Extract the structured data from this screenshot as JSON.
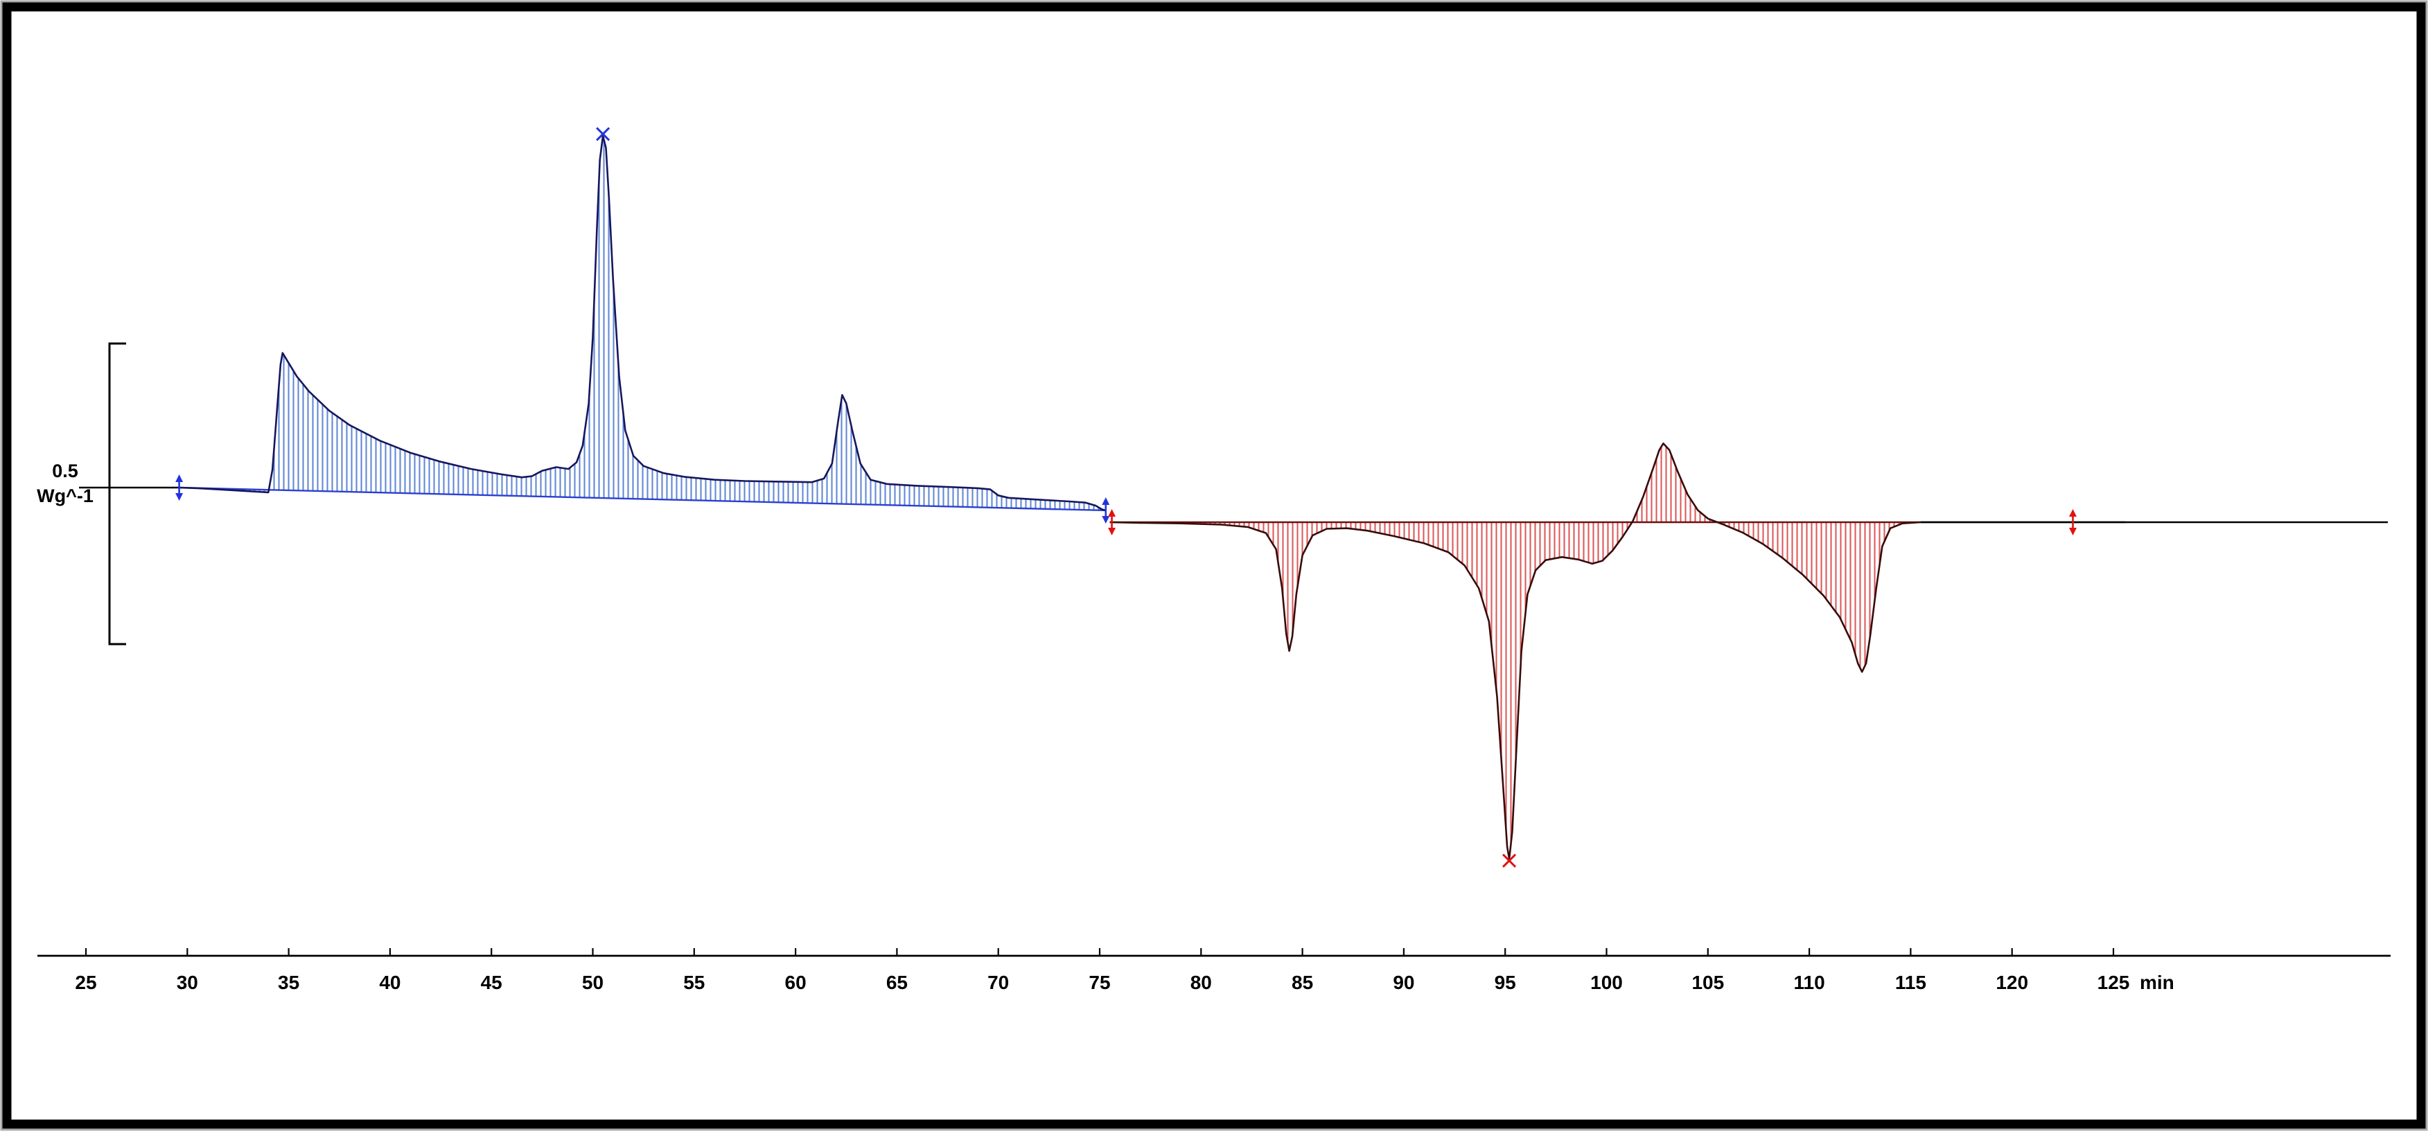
{
  "chart_data": {
    "type": "line",
    "title": "",
    "xlabel": "min",
    "ylabel": "Wg^-1",
    "x_unit": "min",
    "x_ticks": [
      25,
      30,
      35,
      40,
      45,
      50,
      55,
      60,
      65,
      70,
      75,
      80,
      85,
      90,
      95,
      100,
      105,
      110,
      115,
      120,
      125
    ],
    "x_range": [
      25,
      128
    ],
    "grid": "off",
    "scale_bar": {
      "value": "0.5",
      "unit": "Wg^-1",
      "span_Wg": 0.5
    },
    "colors": {
      "blue_curve": "#16165e",
      "blue_hatch": "#6288d4",
      "blue_accent": "#2233dd",
      "red_curve": "#380b0b",
      "red_hatch": "#dd5a5a",
      "red_accent": "#e01212",
      "axis": "#000000"
    },
    "series": [
      {
        "name": "segment-1-blue",
        "line_color": "#16165e",
        "hatch_color": "#6288d4",
        "baseline_color": "#2a3fd0",
        "fill_baseline": {
          "start": [
            29.6,
            0.0
          ],
          "end": [
            75.3,
            -0.038
          ]
        },
        "points": [
          [
            29.6,
            0.0
          ],
          [
            30.5,
            -0.001
          ],
          [
            31.5,
            -0.003
          ],
          [
            32.5,
            -0.005
          ],
          [
            33.5,
            -0.007
          ],
          [
            34.0,
            -0.008
          ],
          [
            34.2,
            0.03
          ],
          [
            34.45,
            0.14
          ],
          [
            34.6,
            0.205
          ],
          [
            34.7,
            0.224
          ],
          [
            34.95,
            0.21
          ],
          [
            35.4,
            0.185
          ],
          [
            36.0,
            0.16
          ],
          [
            37.0,
            0.128
          ],
          [
            38.0,
            0.104
          ],
          [
            39.5,
            0.078
          ],
          [
            41.0,
            0.058
          ],
          [
            42.5,
            0.043
          ],
          [
            44.0,
            0.031
          ],
          [
            45.5,
            0.022
          ],
          [
            46.5,
            0.017
          ],
          [
            47.0,
            0.019
          ],
          [
            47.5,
            0.028
          ],
          [
            48.2,
            0.034
          ],
          [
            48.8,
            0.031
          ],
          [
            49.2,
            0.042
          ],
          [
            49.5,
            0.07
          ],
          [
            49.8,
            0.14
          ],
          [
            50.0,
            0.25
          ],
          [
            50.2,
            0.43
          ],
          [
            50.35,
            0.545
          ],
          [
            50.5,
            0.585
          ],
          [
            50.65,
            0.565
          ],
          [
            50.8,
            0.48
          ],
          [
            51.0,
            0.345
          ],
          [
            51.3,
            0.185
          ],
          [
            51.6,
            0.095
          ],
          [
            52.0,
            0.053
          ],
          [
            52.5,
            0.036
          ],
          [
            53.5,
            0.024
          ],
          [
            54.5,
            0.018
          ],
          [
            56.0,
            0.013
          ],
          [
            57.5,
            0.011
          ],
          [
            59.0,
            0.01
          ],
          [
            60.8,
            0.009
          ],
          [
            61.4,
            0.015
          ],
          [
            61.8,
            0.04
          ],
          [
            62.1,
            0.11
          ],
          [
            62.3,
            0.154
          ],
          [
            62.5,
            0.14
          ],
          [
            62.8,
            0.095
          ],
          [
            63.2,
            0.04
          ],
          [
            63.7,
            0.013
          ],
          [
            64.5,
            0.006
          ],
          [
            66.0,
            0.003
          ],
          [
            67.5,
            0.001
          ],
          [
            69.0,
            -0.001
          ],
          [
            69.6,
            -0.003
          ],
          [
            70.0,
            -0.013
          ],
          [
            70.5,
            -0.017
          ],
          [
            72.0,
            -0.02
          ],
          [
            73.5,
            -0.023
          ],
          [
            74.3,
            -0.025
          ],
          [
            74.8,
            -0.03
          ],
          [
            75.1,
            -0.036
          ],
          [
            75.3,
            -0.038
          ]
        ]
      },
      {
        "name": "segment-2-red",
        "line_color": "#380b0b",
        "hatch_color": "#dd5a5a",
        "baseline_color": "#6b1010",
        "fill_baseline": {
          "start": [
            75.5,
            0.0
          ],
          "end": [
            115.5,
            0.0
          ]
        },
        "points": [
          [
            75.5,
            0.0
          ],
          [
            77.0,
            -0.001
          ],
          [
            79.0,
            -0.002
          ],
          [
            81.0,
            -0.004
          ],
          [
            82.3,
            -0.008
          ],
          [
            83.2,
            -0.018
          ],
          [
            83.7,
            -0.045
          ],
          [
            84.0,
            -0.11
          ],
          [
            84.2,
            -0.185
          ],
          [
            84.35,
            -0.214
          ],
          [
            84.5,
            -0.19
          ],
          [
            84.7,
            -0.12
          ],
          [
            85.0,
            -0.055
          ],
          [
            85.5,
            -0.022
          ],
          [
            86.2,
            -0.011
          ],
          [
            87.2,
            -0.01
          ],
          [
            88.2,
            -0.014
          ],
          [
            89.5,
            -0.023
          ],
          [
            91.0,
            -0.035
          ],
          [
            92.2,
            -0.05
          ],
          [
            93.0,
            -0.072
          ],
          [
            93.7,
            -0.11
          ],
          [
            94.2,
            -0.165
          ],
          [
            94.6,
            -0.29
          ],
          [
            94.9,
            -0.44
          ],
          [
            95.1,
            -0.54
          ],
          [
            95.2,
            -0.56
          ],
          [
            95.35,
            -0.515
          ],
          [
            95.55,
            -0.38
          ],
          [
            95.8,
            -0.215
          ],
          [
            96.1,
            -0.12
          ],
          [
            96.5,
            -0.08
          ],
          [
            97.0,
            -0.063
          ],
          [
            97.8,
            -0.058
          ],
          [
            98.6,
            -0.062
          ],
          [
            99.3,
            -0.069
          ],
          [
            99.8,
            -0.064
          ],
          [
            100.3,
            -0.047
          ],
          [
            100.8,
            -0.024
          ],
          [
            101.3,
            0.002
          ],
          [
            101.8,
            0.042
          ],
          [
            102.3,
            0.09
          ],
          [
            102.6,
            0.12
          ],
          [
            102.8,
            0.131
          ],
          [
            103.1,
            0.12
          ],
          [
            103.5,
            0.085
          ],
          [
            104.0,
            0.046
          ],
          [
            104.5,
            0.02
          ],
          [
            105.0,
            0.006
          ],
          [
            105.7,
            -0.003
          ],
          [
            106.7,
            -0.017
          ],
          [
            107.7,
            -0.036
          ],
          [
            108.7,
            -0.06
          ],
          [
            109.7,
            -0.088
          ],
          [
            110.7,
            -0.122
          ],
          [
            111.5,
            -0.158
          ],
          [
            112.1,
            -0.2
          ],
          [
            112.4,
            -0.235
          ],
          [
            112.6,
            -0.249
          ],
          [
            112.8,
            -0.235
          ],
          [
            113.0,
            -0.19
          ],
          [
            113.3,
            -0.11
          ],
          [
            113.6,
            -0.04
          ],
          [
            114.0,
            -0.01
          ],
          [
            114.6,
            -0.002
          ],
          [
            115.5,
            0.0
          ],
          [
            117.0,
            0.0
          ],
          [
            119.0,
            0.0
          ],
          [
            121.0,
            0.0
          ],
          [
            123.0,
            0.0
          ],
          [
            125.6,
            0.0
          ]
        ]
      }
    ],
    "cursors": [
      {
        "series": 0,
        "t": 29.6,
        "v": 0.0,
        "color": "#2233dd"
      },
      {
        "series": 0,
        "t": 75.3,
        "v": -0.038,
        "color": "#2233dd"
      },
      {
        "series": 1,
        "t": 75.6,
        "v": 0.0,
        "color": "#e01212"
      },
      {
        "series": 1,
        "t": 123.0,
        "v": 0.0,
        "color": "#e01212"
      }
    ],
    "peak_markers": [
      {
        "series": 0,
        "t": 50.5,
        "v": 0.588,
        "symbol": "x",
        "color": "#2233dd"
      },
      {
        "series": 1,
        "t": 95.2,
        "v": -0.563,
        "symbol": "x",
        "color": "#e01212"
      }
    ]
  }
}
